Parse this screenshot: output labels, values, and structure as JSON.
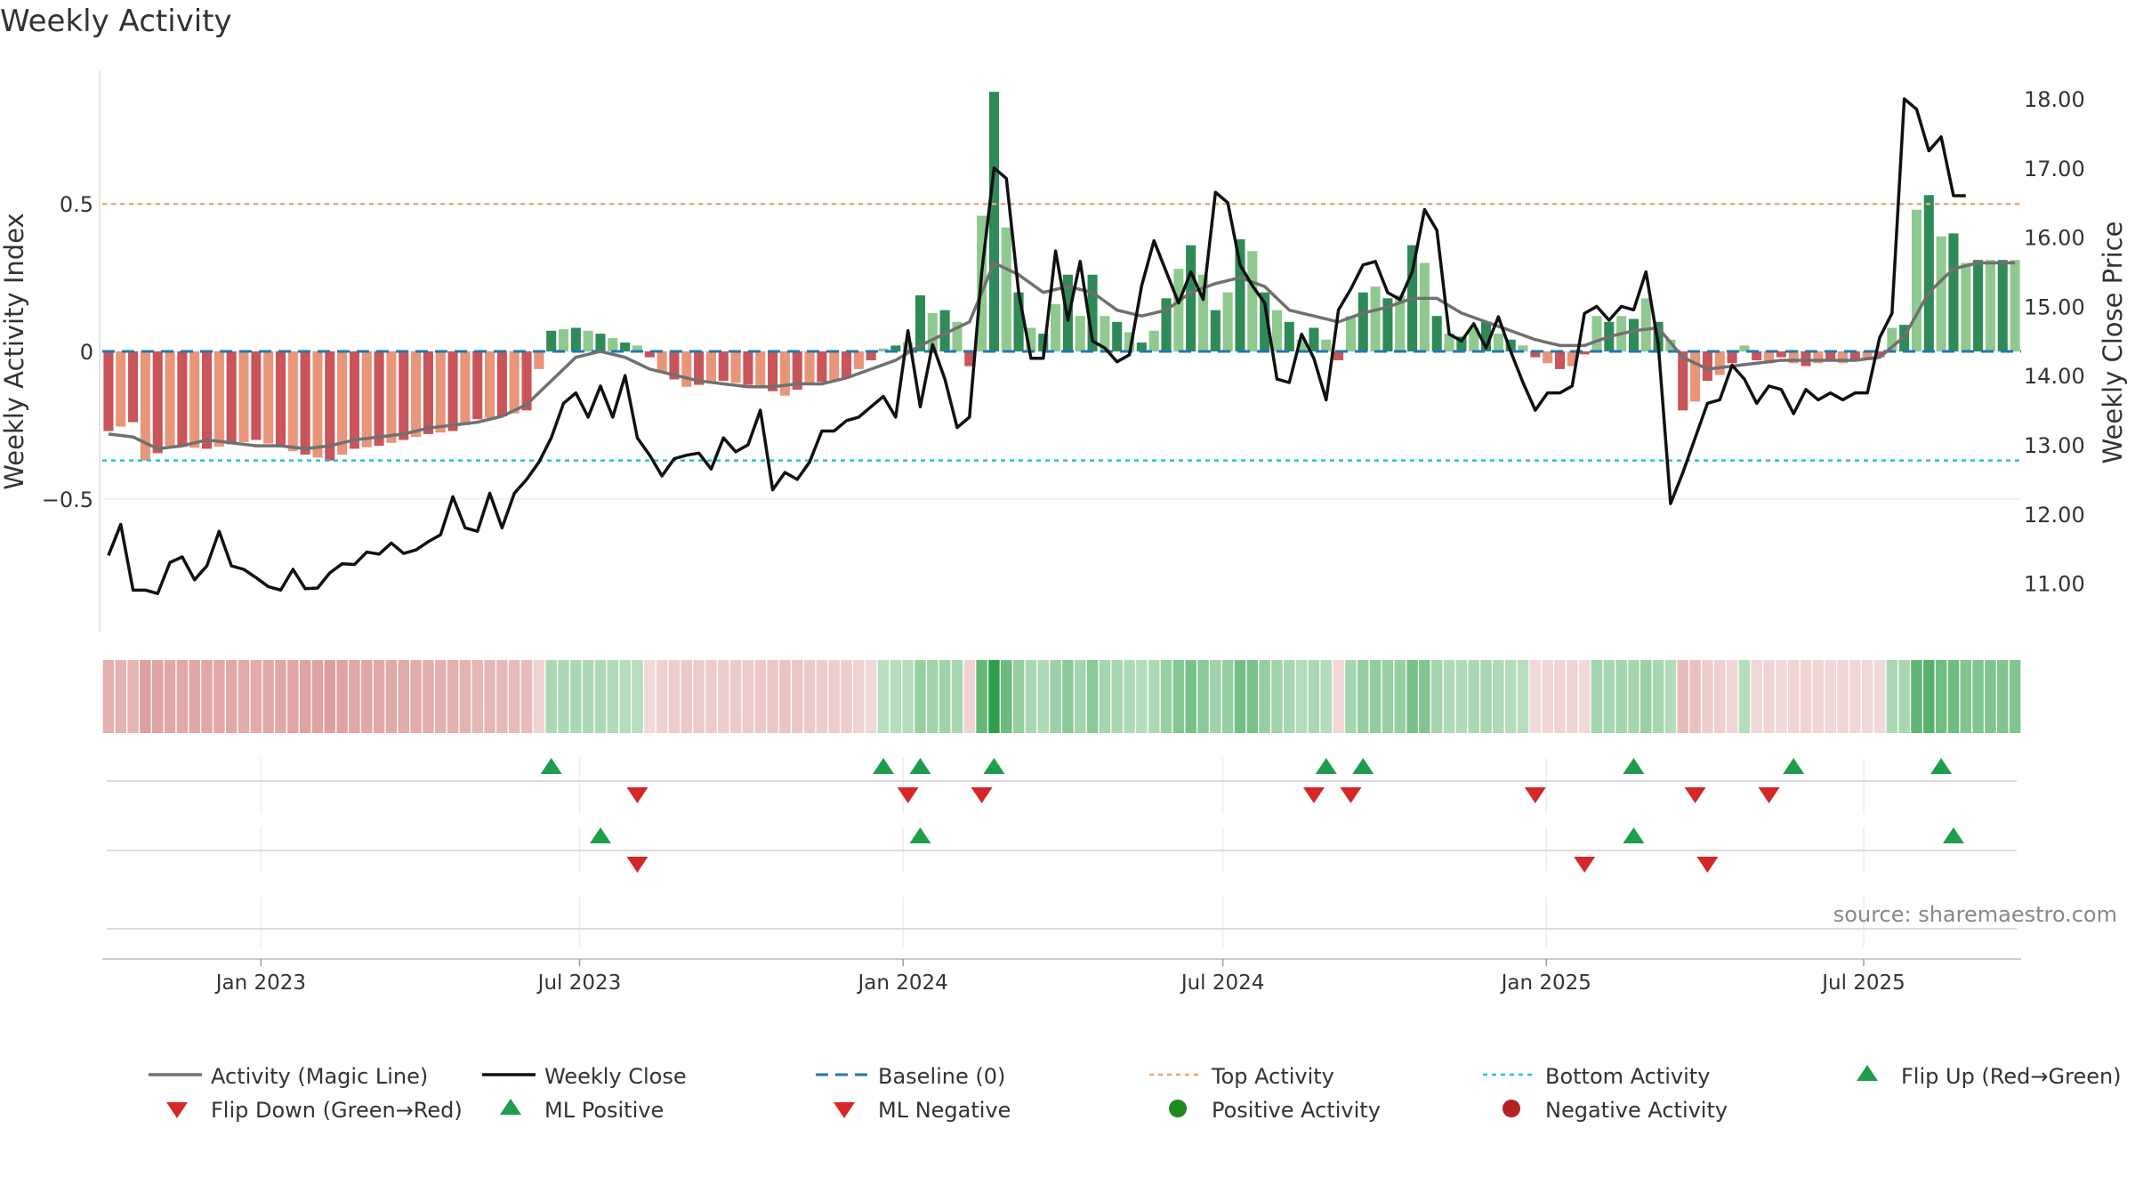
{
  "title": "Weekly Activity",
  "source": "source: sharemaestro.com",
  "colors": {
    "magic_line": "#707070",
    "close": "#111111",
    "baseline": "#1f77b4",
    "top_line": "#f0a868",
    "bottom_line": "#21c4dc",
    "green_strong": "#2e8b57",
    "green_light": "#8fc98f",
    "red_strong": "#c9545a",
    "red_light": "#e8957a",
    "flip_up": "#1e9e4a",
    "flip_down": "#d62728",
    "pos_dot": "#1f8a1f",
    "neg_dot": "#b22222"
  },
  "chart_data": {
    "type": "bar",
    "title": "Weekly Activity",
    "ylabel": "Weekly Activity Index",
    "y2label": "Weekly Close Price",
    "ylim": [
      -0.95,
      0.95
    ],
    "y2lim": [
      10.3,
      18.4
    ],
    "yticks": [
      {
        "v": 0.5,
        "label": "0.5"
      },
      {
        "v": 0,
        "label": "0"
      },
      {
        "v": -0.5,
        "label": "−0.5"
      }
    ],
    "y2ticks": [
      {
        "v": 18,
        "label": "18.00"
      },
      {
        "v": 17,
        "label": "17.00"
      },
      {
        "v": 16,
        "label": "16.00"
      },
      {
        "v": 15,
        "label": "15.00"
      },
      {
        "v": 14,
        "label": "14.00"
      },
      {
        "v": 13,
        "label": "13.00"
      },
      {
        "v": 12,
        "label": "12.00"
      },
      {
        "v": 11,
        "label": "11.00"
      }
    ],
    "x_start": "2022-10-14",
    "weeks": 156,
    "xticks": [
      {
        "week": 12.4,
        "label": "Jan 2023"
      },
      {
        "week": 38.3,
        "label": "Jul 2023"
      },
      {
        "week": 64.6,
        "label": "Jan 2024"
      },
      {
        "week": 90.6,
        "label": "Jul 2024"
      },
      {
        "week": 116.9,
        "label": "Jan 2025"
      },
      {
        "week": 142.7,
        "label": "Jul 2025"
      }
    ],
    "top_activity": 0.5,
    "bottom_activity": -0.37,
    "activity_anchors": [
      [
        0,
        -0.27
      ],
      [
        2,
        -0.24
      ],
      [
        3,
        -0.37
      ],
      [
        5,
        -0.32
      ],
      [
        8,
        -0.33
      ],
      [
        12,
        -0.3
      ],
      [
        16,
        -0.35
      ],
      [
        18,
        -0.37
      ],
      [
        20,
        -0.33
      ],
      [
        22,
        -0.32
      ],
      [
        24,
        -0.3
      ],
      [
        26,
        -0.28
      ],
      [
        28,
        -0.27
      ],
      [
        30,
        -0.23
      ],
      [
        32,
        -0.22
      ],
      [
        34,
        -0.2
      ],
      [
        35,
        -0.06
      ],
      [
        36,
        0.07
      ],
      [
        38,
        0.08
      ],
      [
        40,
        0.06
      ],
      [
        42,
        0.03
      ],
      [
        43,
        0.02
      ],
      [
        44,
        -0.02
      ],
      [
        45,
        -0.07
      ],
      [
        47,
        -0.12
      ],
      [
        50,
        -0.1
      ],
      [
        53,
        -0.12
      ],
      [
        55,
        -0.15
      ],
      [
        57,
        -0.11
      ],
      [
        60,
        -0.09
      ],
      [
        62,
        -0.03
      ],
      [
        63,
        0.01
      ],
      [
        64,
        0.02
      ],
      [
        65,
        0.03
      ],
      [
        66,
        0.19
      ],
      [
        67,
        0.13
      ],
      [
        68,
        0.14
      ],
      [
        69,
        0.1
      ],
      [
        70,
        -0.05
      ],
      [
        71,
        0.46
      ],
      [
        72,
        0.88
      ],
      [
        73,
        0.42
      ],
      [
        74,
        0.2
      ],
      [
        75,
        0.08
      ],
      [
        76,
        0.06
      ],
      [
        78,
        0.26
      ],
      [
        79,
        0.12
      ],
      [
        80,
        0.26
      ],
      [
        81,
        0.12
      ],
      [
        82,
        0.1
      ],
      [
        84,
        0.03
      ],
      [
        85,
        0.07
      ],
      [
        86,
        0.18
      ],
      [
        87,
        0.28
      ],
      [
        88,
        0.36
      ],
      [
        89,
        0.26
      ],
      [
        90,
        0.14
      ],
      [
        91,
        0.2
      ],
      [
        92,
        0.38
      ],
      [
        93,
        0.34
      ],
      [
        94,
        0.2
      ],
      [
        95,
        0.14
      ],
      [
        96,
        0.1
      ],
      [
        97,
        0.04
      ],
      [
        98,
        0.08
      ],
      [
        99,
        0.04
      ],
      [
        100,
        -0.03
      ],
      [
        101,
        0.12
      ],
      [
        102,
        0.2
      ],
      [
        103,
        0.22
      ],
      [
        104,
        0.18
      ],
      [
        105,
        0.19
      ],
      [
        106,
        0.36
      ],
      [
        107,
        0.3
      ],
      [
        108,
        0.12
      ],
      [
        109,
        0.06
      ],
      [
        110,
        0.05
      ],
      [
        111,
        0.08
      ],
      [
        112,
        0.1
      ],
      [
        113,
        0.06
      ],
      [
        114,
        0.04
      ],
      [
        115,
        0.02
      ],
      [
        116,
        -0.02
      ],
      [
        117,
        -0.04
      ],
      [
        118,
        -0.06
      ],
      [
        119,
        -0.05
      ],
      [
        120,
        -0.01
      ],
      [
        121,
        0.12
      ],
      [
        122,
        0.1
      ],
      [
        123,
        0.12
      ],
      [
        124,
        0.11
      ],
      [
        125,
        0.18
      ],
      [
        126,
        0.1
      ],
      [
        127,
        0.04
      ],
      [
        128,
        -0.2
      ],
      [
        129,
        -0.17
      ],
      [
        130,
        -0.1
      ],
      [
        131,
        -0.08
      ],
      [
        132,
        -0.04
      ],
      [
        133,
        0.02
      ],
      [
        134,
        -0.03
      ],
      [
        135,
        -0.04
      ],
      [
        136,
        -0.02
      ],
      [
        137,
        -0.04
      ],
      [
        138,
        -0.05
      ],
      [
        139,
        -0.04
      ],
      [
        140,
        -0.03
      ],
      [
        141,
        -0.04
      ],
      [
        142,
        -0.03
      ],
      [
        143,
        -0.03
      ],
      [
        144,
        -0.02
      ],
      [
        145,
        0.08
      ],
      [
        146,
        0.09
      ],
      [
        147,
        0.48
      ],
      [
        148,
        0.53
      ],
      [
        149,
        0.39
      ],
      [
        150,
        0.4
      ],
      [
        151,
        0.3
      ],
      [
        152,
        0.31
      ]
    ],
    "magic_line_anchors": [
      [
        0,
        -0.28
      ],
      [
        2,
        -0.29
      ],
      [
        4,
        -0.33
      ],
      [
        6,
        -0.32
      ],
      [
        8,
        -0.3
      ],
      [
        10,
        -0.31
      ],
      [
        12,
        -0.32
      ],
      [
        14,
        -0.32
      ],
      [
        16,
        -0.33
      ],
      [
        18,
        -0.32
      ],
      [
        20,
        -0.3
      ],
      [
        22,
        -0.29
      ],
      [
        24,
        -0.28
      ],
      [
        26,
        -0.26
      ],
      [
        28,
        -0.25
      ],
      [
        30,
        -0.24
      ],
      [
        32,
        -0.22
      ],
      [
        34,
        -0.18
      ],
      [
        36,
        -0.1
      ],
      [
        38,
        -0.02
      ],
      [
        40,
        0.0
      ],
      [
        42,
        -0.02
      ],
      [
        44,
        -0.06
      ],
      [
        46,
        -0.08
      ],
      [
        48,
        -0.1
      ],
      [
        50,
        -0.11
      ],
      [
        52,
        -0.12
      ],
      [
        54,
        -0.12
      ],
      [
        56,
        -0.11
      ],
      [
        58,
        -0.11
      ],
      [
        60,
        -0.09
      ],
      [
        62,
        -0.06
      ],
      [
        64,
        -0.03
      ],
      [
        66,
        0.02
      ],
      [
        68,
        0.06
      ],
      [
        70,
        0.1
      ],
      [
        72,
        0.3
      ],
      [
        74,
        0.26
      ],
      [
        76,
        0.2
      ],
      [
        78,
        0.22
      ],
      [
        80,
        0.2
      ],
      [
        82,
        0.14
      ],
      [
        84,
        0.12
      ],
      [
        86,
        0.14
      ],
      [
        88,
        0.2
      ],
      [
        90,
        0.23
      ],
      [
        92,
        0.25
      ],
      [
        94,
        0.22
      ],
      [
        96,
        0.14
      ],
      [
        98,
        0.12
      ],
      [
        100,
        0.1
      ],
      [
        102,
        0.13
      ],
      [
        104,
        0.15
      ],
      [
        106,
        0.18
      ],
      [
        108,
        0.18
      ],
      [
        110,
        0.13
      ],
      [
        112,
        0.1
      ],
      [
        114,
        0.07
      ],
      [
        116,
        0.04
      ],
      [
        118,
        0.02
      ],
      [
        120,
        0.02
      ],
      [
        122,
        0.05
      ],
      [
        124,
        0.07
      ],
      [
        126,
        0.08
      ],
      [
        128,
        -0.02
      ],
      [
        130,
        -0.06
      ],
      [
        132,
        -0.05
      ],
      [
        134,
        -0.04
      ],
      [
        136,
        -0.03
      ],
      [
        138,
        -0.03
      ],
      [
        140,
        -0.03
      ],
      [
        142,
        -0.03
      ],
      [
        144,
        -0.02
      ],
      [
        146,
        0.05
      ],
      [
        148,
        0.2
      ],
      [
        150,
        0.28
      ],
      [
        152,
        0.3
      ]
    ],
    "close_anchors": [
      [
        0,
        11.4
      ],
      [
        1,
        11.85
      ],
      [
        2,
        10.9
      ],
      [
        3,
        10.9
      ],
      [
        4,
        10.85
      ],
      [
        5,
        11.3
      ],
      [
        6,
        11.38
      ],
      [
        7,
        11.05
      ],
      [
        8,
        11.25
      ],
      [
        9,
        11.75
      ],
      [
        10,
        11.25
      ],
      [
        11,
        11.2
      ],
      [
        12,
        11.08
      ],
      [
        13,
        10.95
      ],
      [
        14,
        10.9
      ],
      [
        15,
        11.2
      ],
      [
        16,
        10.92
      ],
      [
        17,
        10.93
      ],
      [
        18,
        11.15
      ],
      [
        19,
        11.28
      ],
      [
        20,
        11.27
      ],
      [
        21,
        11.45
      ],
      [
        22,
        11.42
      ],
      [
        23,
        11.58
      ],
      [
        24,
        11.43
      ],
      [
        25,
        11.48
      ],
      [
        26,
        11.6
      ],
      [
        27,
        11.7
      ],
      [
        28,
        12.25
      ],
      [
        29,
        11.8
      ],
      [
        30,
        11.75
      ],
      [
        31,
        12.3
      ],
      [
        32,
        11.8
      ],
      [
        33,
        12.3
      ],
      [
        34,
        12.5
      ],
      [
        35,
        12.75
      ],
      [
        36,
        13.1
      ],
      [
        37,
        13.6
      ],
      [
        38,
        13.75
      ],
      [
        39,
        13.4
      ],
      [
        40,
        13.85
      ],
      [
        41,
        13.4
      ],
      [
        42,
        14.0
      ],
      [
        43,
        13.1
      ],
      [
        44,
        12.85
      ],
      [
        45,
        12.55
      ],
      [
        46,
        12.8
      ],
      [
        47,
        12.85
      ],
      [
        48,
        12.88
      ],
      [
        49,
        12.65
      ],
      [
        50,
        13.1
      ],
      [
        51,
        12.9
      ],
      [
        52,
        13.0
      ],
      [
        53,
        13.5
      ],
      [
        54,
        12.35
      ],
      [
        55,
        12.6
      ],
      [
        56,
        12.5
      ],
      [
        57,
        12.75
      ],
      [
        58,
        13.2
      ],
      [
        59,
        13.2
      ],
      [
        60,
        13.35
      ],
      [
        61,
        13.4
      ],
      [
        62,
        13.55
      ],
      [
        63,
        13.7
      ],
      [
        64,
        13.4
      ],
      [
        65,
        14.65
      ],
      [
        66,
        13.55
      ],
      [
        67,
        14.45
      ],
      [
        68,
        13.95
      ],
      [
        69,
        13.25
      ],
      [
        70,
        13.4
      ],
      [
        71,
        15.5
      ],
      [
        72,
        17.0
      ],
      [
        73,
        16.85
      ],
      [
        74,
        15.2
      ],
      [
        75,
        14.25
      ],
      [
        76,
        14.25
      ],
      [
        77,
        15.8
      ],
      [
        78,
        14.8
      ],
      [
        79,
        15.65
      ],
      [
        80,
        14.5
      ],
      [
        81,
        14.4
      ],
      [
        82,
        14.2
      ],
      [
        83,
        14.3
      ],
      [
        84,
        15.3
      ],
      [
        85,
        15.95
      ],
      [
        86,
        15.5
      ],
      [
        87,
        15.05
      ],
      [
        88,
        15.5
      ],
      [
        89,
        15.1
      ],
      [
        90,
        16.65
      ],
      [
        91,
        16.5
      ],
      [
        92,
        15.6
      ],
      [
        93,
        15.3
      ],
      [
        94,
        15.05
      ],
      [
        95,
        13.95
      ],
      [
        96,
        13.9
      ],
      [
        97,
        14.6
      ],
      [
        98,
        14.25
      ],
      [
        99,
        13.65
      ],
      [
        100,
        14.95
      ],
      [
        101,
        15.25
      ],
      [
        102,
        15.6
      ],
      [
        103,
        15.65
      ],
      [
        104,
        15.2
      ],
      [
        105,
        15.1
      ],
      [
        106,
        15.5
      ],
      [
        107,
        16.4
      ],
      [
        108,
        16.1
      ],
      [
        109,
        14.6
      ],
      [
        110,
        14.5
      ],
      [
        111,
        14.75
      ],
      [
        112,
        14.4
      ],
      [
        113,
        14.85
      ],
      [
        114,
        14.35
      ],
      [
        115,
        13.9
      ],
      [
        116,
        13.5
      ],
      [
        117,
        13.75
      ],
      [
        118,
        13.75
      ],
      [
        119,
        13.85
      ],
      [
        120,
        14.9
      ],
      [
        121,
        15.0
      ],
      [
        122,
        14.8
      ],
      [
        123,
        15.0
      ],
      [
        124,
        14.95
      ],
      [
        125,
        15.5
      ],
      [
        126,
        14.45
      ],
      [
        127,
        12.15
      ],
      [
        128,
        12.6
      ],
      [
        129,
        13.1
      ],
      [
        130,
        13.6
      ],
      [
        131,
        13.65
      ],
      [
        132,
        14.15
      ],
      [
        133,
        13.95
      ],
      [
        134,
        13.6
      ],
      [
        135,
        13.85
      ],
      [
        136,
        13.8
      ],
      [
        137,
        13.45
      ],
      [
        138,
        13.8
      ],
      [
        139,
        13.65
      ],
      [
        140,
        13.75
      ],
      [
        141,
        13.65
      ],
      [
        142,
        13.75
      ],
      [
        143,
        13.75
      ],
      [
        144,
        14.55
      ],
      [
        145,
        14.9
      ],
      [
        146,
        18.0
      ],
      [
        147,
        17.85
      ],
      [
        148,
        17.25
      ],
      [
        149,
        17.45
      ],
      [
        150,
        16.6
      ],
      [
        151,
        16.6
      ]
    ],
    "flip_up_weeks": [
      36,
      63,
      66,
      72,
      99,
      102,
      124,
      137,
      149
    ],
    "flip_down_weeks": [
      43,
      65,
      71,
      98,
      101,
      116,
      129,
      135
    ],
    "ml_positive_weeks": [
      40,
      66,
      124,
      150
    ],
    "ml_negative_weeks": [
      43,
      120,
      130
    ]
  },
  "legend": [
    {
      "label": "Activity (Magic Line)",
      "symbol": "line-gray"
    },
    {
      "label": "Weekly Close",
      "symbol": "line-black"
    },
    {
      "label": "Baseline (0)",
      "symbol": "dash-blue"
    },
    {
      "label": "Top Activity",
      "symbol": "dot-orange"
    },
    {
      "label": "Bottom Activity",
      "symbol": "dot-cyan"
    },
    {
      "label": "Flip Up (Red→Green)",
      "symbol": "tri-up-green"
    },
    {
      "label": "Flip Down (Green→Red)",
      "symbol": "tri-down-red"
    },
    {
      "label": "ML Positive",
      "symbol": "tri-up-green"
    },
    {
      "label": "ML Negative",
      "symbol": "tri-down-red"
    },
    {
      "label": "Positive Activity",
      "symbol": "circle-green"
    },
    {
      "label": "Negative Activity",
      "symbol": "circle-red"
    }
  ]
}
